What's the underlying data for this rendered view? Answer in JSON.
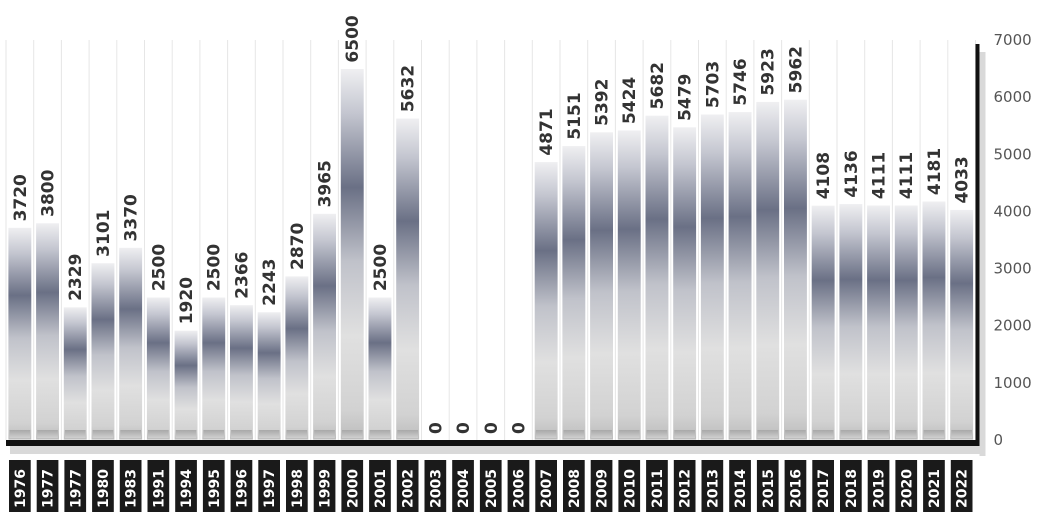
{
  "chart_data": {
    "type": "bar",
    "categories": [
      "1976",
      "1977",
      "1977",
      "1980",
      "1983",
      "1991",
      "1994",
      "1995",
      "1996",
      "1997",
      "1998",
      "1999",
      "2000",
      "2001",
      "2002",
      "2003",
      "2004",
      "2005",
      "2006",
      "2007",
      "2008",
      "2009",
      "2010",
      "2011",
      "2012",
      "2013",
      "2014",
      "2015",
      "2016",
      "2017",
      "2018",
      "2019",
      "2020",
      "2021",
      "2022"
    ],
    "values": [
      3720,
      3800,
      2329,
      3101,
      3370,
      2500,
      1920,
      2500,
      2366,
      2243,
      2870,
      3965,
      6500,
      2500,
      5632,
      0,
      0,
      0,
      0,
      4871,
      5151,
      5392,
      5424,
      5682,
      5479,
      5703,
      5746,
      5923,
      5962,
      4108,
      4136,
      4111,
      4111,
      4181,
      4033
    ],
    "value_labels": [
      "3720",
      "3800",
      "2329",
      "3101",
      "3370",
      "2500",
      "1920",
      "2500",
      "2366",
      "2243",
      "2870",
      "3965",
      "6500",
      "2500",
      "5632",
      "0",
      "0",
      "0",
      "0",
      "4871",
      "5151",
      "5392",
      "5424",
      "5682",
      "5479",
      "5703",
      "5746",
      "5923",
      "5962",
      "4108",
      "4136",
      "4111",
      "4111",
      "4181",
      "4033"
    ],
    "ylim": [
      0,
      7000
    ],
    "yticks": [
      "0",
      "1000",
      "2000",
      "3000",
      "4000",
      "5000",
      "6000",
      "7000"
    ],
    "axis_position": "right",
    "grid": false,
    "colors": {
      "bar_dark": "#6a7085",
      "bar_light": "#e2e2e2",
      "bar_base": "#b5b5b5",
      "axis": "#111111"
    }
  }
}
